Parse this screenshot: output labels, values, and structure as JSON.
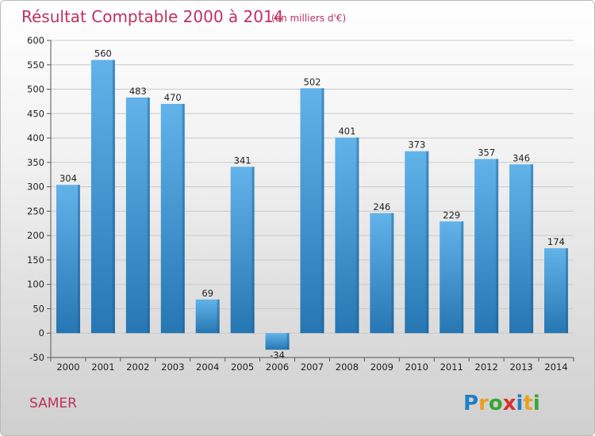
{
  "chart_data": {
    "type": "bar",
    "title": "Résultat Comptable 2000 à 2014",
    "unit_note": "(en milliers d'€)",
    "categories": [
      "2000",
      "2001",
      "2002",
      "2003",
      "2004",
      "2005",
      "2006",
      "2007",
      "2008",
      "2009",
      "2010",
      "2011",
      "2012",
      "2013",
      "2014"
    ],
    "values": [
      304,
      560,
      483,
      470,
      69,
      341,
      -34,
      502,
      401,
      246,
      373,
      229,
      357,
      346,
      174
    ],
    "ylim": [
      -50,
      600
    ],
    "yticks": [
      -50,
      0,
      50,
      100,
      150,
      200,
      250,
      300,
      350,
      400,
      450,
      500,
      550,
      600
    ],
    "grid": true,
    "xlabel": "",
    "ylabel": ""
  },
  "commune": "SAMER",
  "logo": {
    "letters": [
      "P",
      "r",
      "o",
      "x",
      "i",
      "t",
      "i"
    ],
    "colors": [
      "#1f7fc4",
      "#e9a21f",
      "#3aa635",
      "#d5312d",
      "#1f7fc4",
      "#e9a21f",
      "#3aa635"
    ]
  },
  "colors": {
    "bar_top": "#62b3ea",
    "bar_bottom": "#2676b3",
    "bar_side": "#1d5d90",
    "title": "#c0305b",
    "grid": "#c9c9c9"
  }
}
